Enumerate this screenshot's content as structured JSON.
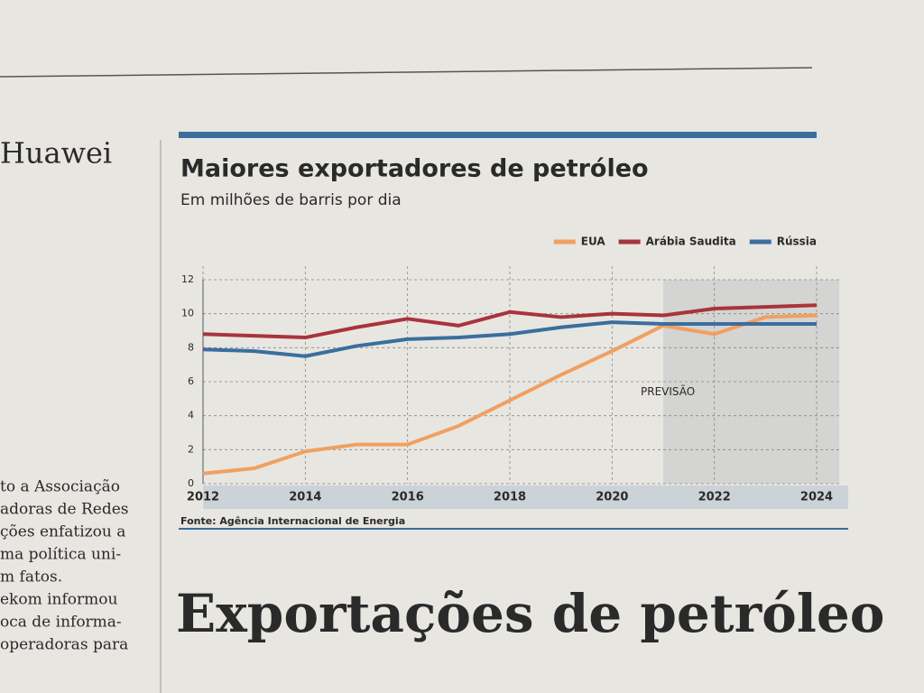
{
  "side_column": {
    "heading": "Huawei",
    "lines": [
      "to a Associação",
      "adoras de Redes",
      "ções enfatizou a",
      "ma política uni-",
      "m fatos.",
      "ekom informou",
      "oca de informa-",
      "operadoras para"
    ]
  },
  "headline": "Exportações de petróleo",
  "chart_data": {
    "type": "line",
    "title": "Maiores exportadores de petróleo",
    "subtitle": "Em milhões de barris por dia",
    "x": [
      2012,
      2013,
      2014,
      2015,
      2016,
      2017,
      2018,
      2019,
      2020,
      2021,
      2022,
      2023,
      2024
    ],
    "series": [
      {
        "name": "EUA",
        "color": "#f0a060",
        "values": [
          0.6,
          0.9,
          1.9,
          2.3,
          2.3,
          3.4,
          4.9,
          6.4,
          7.8,
          9.3,
          8.8,
          9.8,
          9.9
        ]
      },
      {
        "name": "Arábia Saudita",
        "color": "#a8343c",
        "values": [
          8.8,
          8.7,
          8.6,
          9.2,
          9.7,
          9.3,
          10.1,
          9.8,
          10.0,
          9.9,
          10.3,
          10.4,
          10.5
        ]
      },
      {
        "name": "Rússia",
        "color": "#3b6e9e",
        "values": [
          7.9,
          7.8,
          7.5,
          8.1,
          8.5,
          8.6,
          8.8,
          9.2,
          9.5,
          9.4,
          9.4,
          9.4,
          9.4
        ]
      }
    ],
    "xlim": [
      2012,
      2024
    ],
    "xticks": [
      2012,
      2014,
      2016,
      2018,
      2020,
      2022,
      2024
    ],
    "ylim": [
      0,
      12
    ],
    "yticks": [
      0,
      2,
      4,
      6,
      8,
      10,
      12
    ],
    "grid": true,
    "legend": "top-right",
    "forecast_start": 2021,
    "forecast_label": "PREVISÃO",
    "source": "Fonte: Agência Internacional de Energia"
  }
}
